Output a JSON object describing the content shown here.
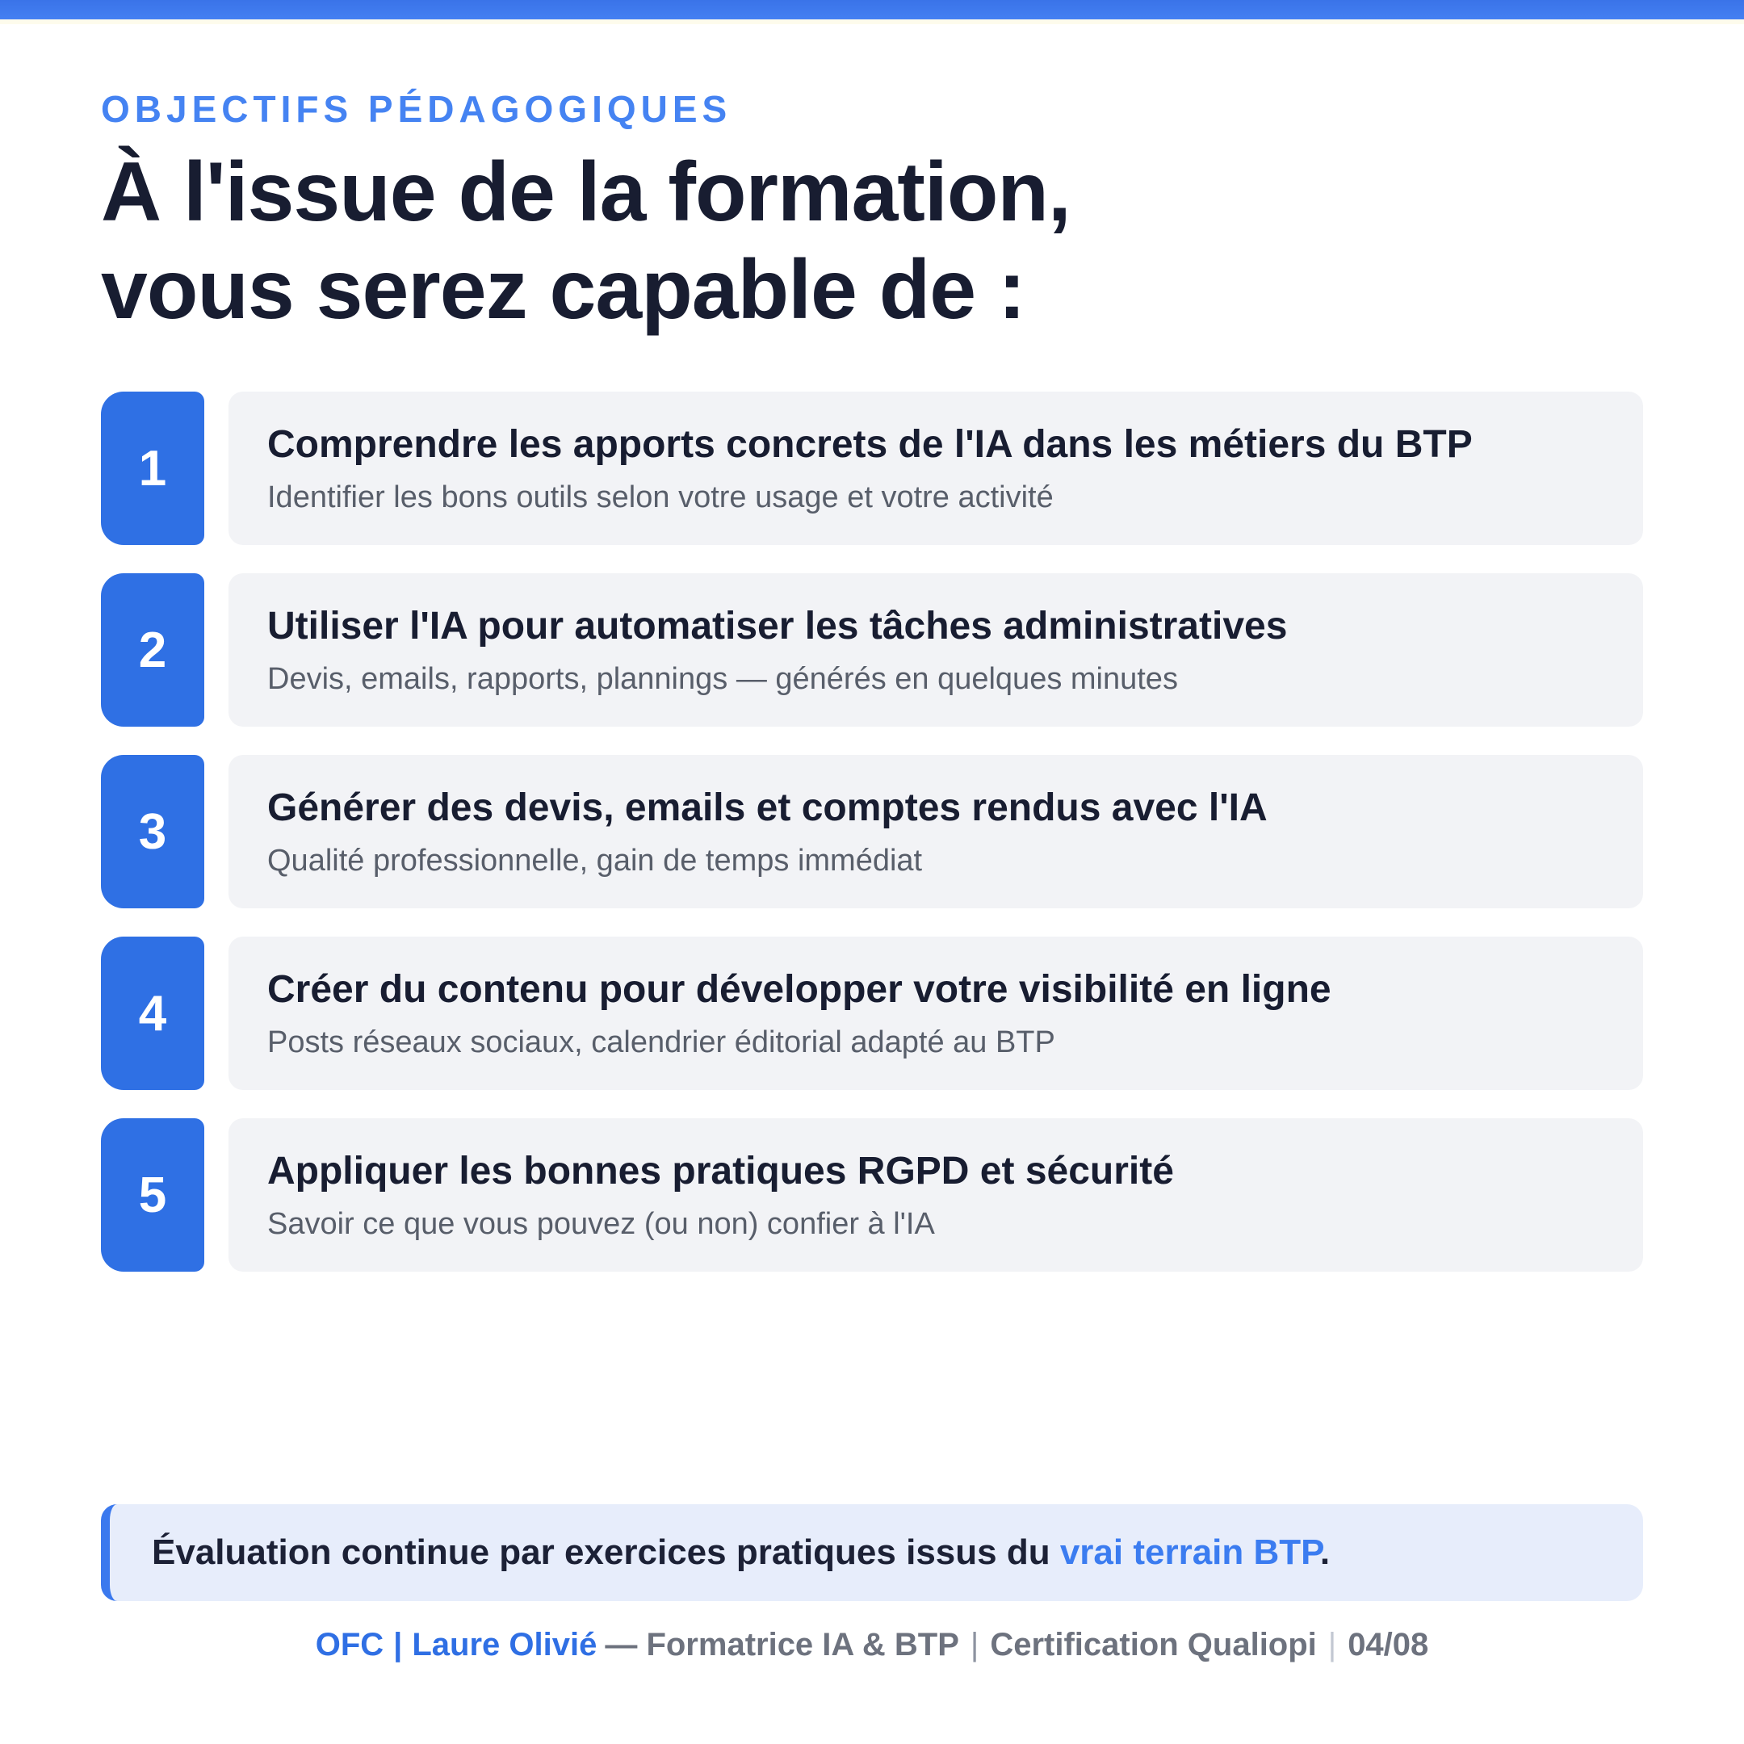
{
  "page": {
    "eyebrow": "OBJECTIFS PÉDAGOGIQUES",
    "title_line1": "À l'issue de la formation,",
    "title_line2": "vous serez capable de :"
  },
  "objectives": [
    {
      "number": "1",
      "title": "Comprendre les apports concrets de l'IA dans les métiers du BTP",
      "subtitle": "Identifier les bons outils selon votre usage et votre activité"
    },
    {
      "number": "2",
      "title": "Utiliser l'IA pour automatiser les tâches administratives",
      "subtitle": "Devis, emails, rapports, plannings — générés en quelques minutes"
    },
    {
      "number": "3",
      "title": "Générer des devis, emails et comptes rendus avec l'IA",
      "subtitle": "Qualité professionnelle, gain de temps immédiat"
    },
    {
      "number": "4",
      "title": "Créer du contenu pour développer votre visibilité en ligne",
      "subtitle": "Posts réseaux sociaux, calendrier éditorial adapté au BTP"
    },
    {
      "number": "5",
      "title": "Appliquer les bonnes pratiques RGPD et sécurité",
      "subtitle": "Savoir ce que vous pouvez (ou non) confier à l'IA"
    }
  ],
  "callout": {
    "text_before": "Évaluation continue par exercices pratiques issus du ",
    "highlight": "vrai terrain BTP",
    "text_after": "."
  },
  "footer": {
    "brand": "OFC",
    "separator": "|",
    "author": "Laure Olivié",
    "role": "— Formatrice IA & BTP",
    "certification": "Certification Qualiopi",
    "page_number": "04/08"
  },
  "colors": {
    "top_bar_blue": "#3d77ea",
    "accent_blue": "#2f70e4",
    "eyebrow_blue": "#4583f2",
    "link_blue": "#3b7cf0",
    "heading_dark": "#181d31",
    "card_bg": "#f2f3f6",
    "callout_bg": "#e7edfb",
    "subtitle_gray": "#585e6a",
    "footer_gray": "#6d727e"
  }
}
